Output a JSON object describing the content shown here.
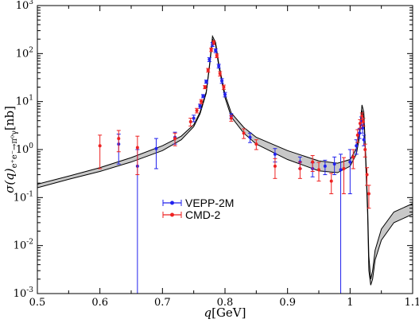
{
  "chart_data": {
    "type": "scatter",
    "title": "",
    "xlabel": "q[GeV]",
    "ylabel": "σ(q)",
    "ylabel_sub": "e⁺e⁻→π⁰γ",
    "ylabel_unit": "[nb]",
    "xlim": [
      0.5,
      1.1
    ],
    "ylim": [
      0.001,
      400
    ],
    "yscale": "log",
    "grid": false,
    "legend_position": "lower-left-center",
    "x_ticks": [
      "0.5",
      "0.6",
      "0.7",
      "0.8",
      "0.9",
      "1",
      "1.1"
    ],
    "y_ticks": [
      {
        "value": 1000,
        "base": "10",
        "exp": "3"
      },
      {
        "value": 100,
        "base": "10",
        "exp": "2"
      },
      {
        "value": 10,
        "base": "10",
        "exp": "1"
      },
      {
        "value": 1,
        "base": "10",
        "exp": "0"
      },
      {
        "value": 0.1,
        "base": "10",
        "exp": "-1"
      },
      {
        "value": 0.01,
        "base": "10",
        "exp": "-2"
      },
      {
        "value": 0.001,
        "base": "10",
        "exp": "-3"
      }
    ],
    "band": {
      "color": "#c8c8c8",
      "x": [
        0.5,
        0.55,
        0.6,
        0.65,
        0.7,
        0.73,
        0.75,
        0.76,
        0.77,
        0.775,
        0.78,
        0.785,
        0.79,
        0.8,
        0.81,
        0.83,
        0.85,
        0.9,
        0.95,
        0.98,
        1.0,
        1.01,
        1.015,
        1.019,
        1.022,
        1.025,
        1.028,
        1.03,
        1.033,
        1.036,
        1.04,
        1.05,
        1.07,
        1.1
      ],
      "lower": [
        0.16,
        0.24,
        0.35,
        0.55,
        0.95,
        1.6,
        3.0,
        5.5,
        15,
        50,
        200,
        150,
        55,
        12,
        4.8,
        2.2,
        1.3,
        0.62,
        0.36,
        0.33,
        0.45,
        0.8,
        1.8,
        6.5,
        4.5,
        0.55,
        0.045,
        0.003,
        0.0015,
        0.002,
        0.005,
        0.013,
        0.03,
        0.045
      ],
      "upper": [
        0.19,
        0.28,
        0.42,
        0.68,
        1.2,
        1.9,
        3.3,
        6.0,
        16,
        55,
        230,
        170,
        62,
        14,
        5.8,
        2.9,
        1.8,
        0.95,
        0.58,
        0.52,
        0.62,
        1.05,
        2.3,
        8.5,
        6.0,
        0.75,
        0.07,
        0.006,
        0.002,
        0.003,
        0.008,
        0.022,
        0.05,
        0.075
      ]
    },
    "series": [
      {
        "name": "VEPP-2M",
        "color": "#2222ee",
        "points": [
          {
            "x": 0.63,
            "y": 1.3,
            "lo": 0.5,
            "hi": 2.1
          },
          {
            "x": 0.66,
            "y": 0.45,
            "lo": 0.001,
            "hi": 1.0
          },
          {
            "x": 0.69,
            "y": 1.05,
            "lo": 0.4,
            "hi": 1.7
          },
          {
            "x": 0.72,
            "y": 1.8,
            "lo": 1.3,
            "hi": 2.3
          },
          {
            "x": 0.75,
            "y": 4.5,
            "lo": 3.8,
            "hi": 5.2
          },
          {
            "x": 0.76,
            "y": 8.0,
            "lo": 7.2,
            "hi": 8.8
          },
          {
            "x": 0.765,
            "y": 13.0,
            "lo": 12.0,
            "hi": 14.0
          },
          {
            "x": 0.77,
            "y": 26.0,
            "lo": 24.0,
            "hi": 28.0
          },
          {
            "x": 0.775,
            "y": 75.0,
            "lo": 68.0,
            "hi": 82.0
          },
          {
            "x": 0.78,
            "y": 155.0,
            "lo": 140.0,
            "hi": 170.0
          },
          {
            "x": 0.785,
            "y": 115.0,
            "lo": 105.0,
            "hi": 125.0
          },
          {
            "x": 0.79,
            "y": 55.0,
            "lo": 50.0,
            "hi": 60.0
          },
          {
            "x": 0.795,
            "y": 27.0,
            "lo": 24.0,
            "hi": 30.0
          },
          {
            "x": 0.8,
            "y": 14.0,
            "lo": 12.5,
            "hi": 15.5
          },
          {
            "x": 0.81,
            "y": 5.0,
            "lo": 4.4,
            "hi": 5.6
          },
          {
            "x": 0.84,
            "y": 1.8,
            "lo": 1.4,
            "hi": 2.2
          },
          {
            "x": 0.88,
            "y": 0.8,
            "lo": 0.55,
            "hi": 1.05
          },
          {
            "x": 0.92,
            "y": 0.55,
            "lo": 0.4,
            "hi": 0.7
          },
          {
            "x": 0.94,
            "y": 0.4,
            "lo": 0.27,
            "hi": 0.53
          },
          {
            "x": 0.96,
            "y": 0.45,
            "lo": 0.3,
            "hi": 0.6
          },
          {
            "x": 0.975,
            "y": 0.5,
            "lo": 0.3,
            "hi": 0.7
          },
          {
            "x": 0.985,
            "y": 0.38,
            "lo": 0.001,
            "hi": 0.8
          },
          {
            "x": 1.0,
            "y": 0.55,
            "lo": 0.12,
            "hi": 1.0
          },
          {
            "x": 1.01,
            "y": 1.2,
            "lo": 0.8,
            "hi": 1.6
          },
          {
            "x": 1.015,
            "y": 2.2,
            "lo": 1.7,
            "hi": 2.7
          },
          {
            "x": 1.018,
            "y": 4.0,
            "lo": 3.2,
            "hi": 4.8
          },
          {
            "x": 1.02,
            "y": 2.8,
            "lo": 2.2,
            "hi": 3.4
          },
          {
            "x": 1.022,
            "y": 1.6,
            "lo": 1.2,
            "hi": 2.0
          }
        ]
      },
      {
        "name": "CMD-2",
        "color": "#ee2222",
        "points": [
          {
            "x": 0.6,
            "y": 1.2,
            "lo": 0.4,
            "hi": 2.0
          },
          {
            "x": 0.63,
            "y": 1.7,
            "lo": 0.9,
            "hi": 2.5
          },
          {
            "x": 0.66,
            "y": 1.1,
            "lo": 0.3,
            "hi": 1.9
          },
          {
            "x": 0.72,
            "y": 1.7,
            "lo": 1.2,
            "hi": 2.2
          },
          {
            "x": 0.745,
            "y": 3.8,
            "lo": 3.1,
            "hi": 4.5
          },
          {
            "x": 0.755,
            "y": 6.5,
            "lo": 5.8,
            "hi": 7.2
          },
          {
            "x": 0.762,
            "y": 10.0,
            "lo": 9.0,
            "hi": 11.0
          },
          {
            "x": 0.768,
            "y": 20.0,
            "lo": 18.5,
            "hi": 21.5
          },
          {
            "x": 0.773,
            "y": 45.0,
            "lo": 41.0,
            "hi": 49.0
          },
          {
            "x": 0.778,
            "y": 120.0,
            "lo": 110.0,
            "hi": 130.0
          },
          {
            "x": 0.782,
            "y": 170.0,
            "lo": 155.0,
            "hi": 185.0
          },
          {
            "x": 0.787,
            "y": 90.0,
            "lo": 82.0,
            "hi": 98.0
          },
          {
            "x": 0.792,
            "y": 38.0,
            "lo": 34.0,
            "hi": 42.0
          },
          {
            "x": 0.798,
            "y": 20.0,
            "lo": 18.0,
            "hi": 22.0
          },
          {
            "x": 0.81,
            "y": 4.5,
            "lo": 3.9,
            "hi": 5.1
          },
          {
            "x": 0.83,
            "y": 2.2,
            "lo": 1.7,
            "hi": 2.7
          },
          {
            "x": 0.85,
            "y": 1.3,
            "lo": 1.0,
            "hi": 1.6
          },
          {
            "x": 0.88,
            "y": 0.45,
            "lo": 0.25,
            "hi": 0.65
          },
          {
            "x": 0.92,
            "y": 0.4,
            "lo": 0.25,
            "hi": 0.55
          },
          {
            "x": 0.94,
            "y": 0.55,
            "lo": 0.35,
            "hi": 0.75
          },
          {
            "x": 0.95,
            "y": 0.38,
            "lo": 0.22,
            "hi": 0.54
          },
          {
            "x": 0.97,
            "y": 0.22,
            "lo": 0.12,
            "hi": 0.32
          },
          {
            "x": 0.99,
            "y": 0.4,
            "lo": 0.12,
            "hi": 0.68
          },
          {
            "x": 1.005,
            "y": 0.7,
            "lo": 0.4,
            "hi": 1.0
          },
          {
            "x": 1.012,
            "y": 2.0,
            "lo": 1.4,
            "hi": 2.6
          },
          {
            "x": 1.016,
            "y": 3.5,
            "lo": 2.8,
            "hi": 4.2
          },
          {
            "x": 1.019,
            "y": 5.0,
            "lo": 4.2,
            "hi": 5.8
          },
          {
            "x": 1.021,
            "y": 3.8,
            "lo": 3.1,
            "hi": 4.5
          },
          {
            "x": 1.024,
            "y": 1.0,
            "lo": 0.7,
            "hi": 1.3
          },
          {
            "x": 1.027,
            "y": 0.3,
            "lo": 0.18,
            "hi": 0.42
          },
          {
            "x": 1.03,
            "y": 0.12,
            "lo": 0.06,
            "hi": 0.18
          }
        ]
      }
    ]
  }
}
